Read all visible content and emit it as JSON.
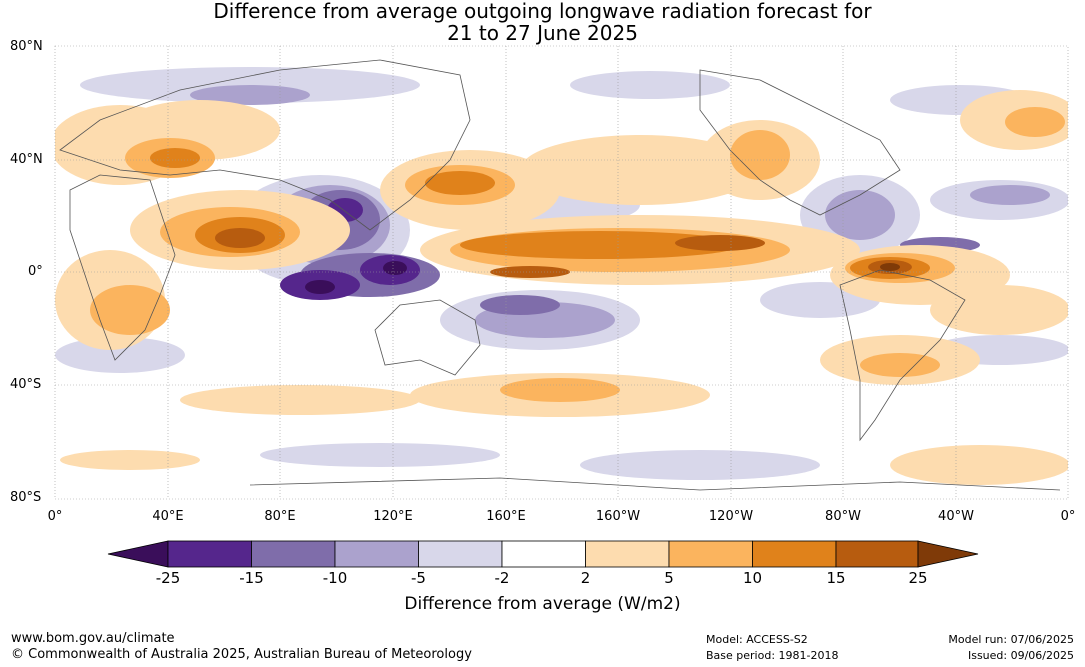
{
  "title_line1": "Difference from average outgoing longwave radiation forecast for",
  "title_line2": "21 to 27 June 2025",
  "lat_labels": [
    "80°N",
    "40°N",
    "0°",
    "40°S",
    "80°S"
  ],
  "lon_labels": [
    "0°",
    "40°E",
    "80°E",
    "120°E",
    "160°E",
    "160°W",
    "120°W",
    "80°W",
    "40°W",
    "0°"
  ],
  "colorbar": {
    "ticks": [
      "-25",
      "-15",
      "-10",
      "-5",
      "-2",
      "2",
      "5",
      "10",
      "15",
      "25"
    ],
    "colors": [
      "#3a0e5a",
      "#55268c",
      "#7f6daa",
      "#aba2cd",
      "#d8d7ea",
      "#ffffff",
      "#fddcaf",
      "#fbb45e",
      "#e0821b",
      "#b75c0f",
      "#7f3a08"
    ],
    "title": "Difference from average (W/m2)"
  },
  "footer": {
    "url": "www.bom.gov.au/climate",
    "copyright": "© Commonwealth of Australia 2025, Australian Bureau of Meteorology",
    "model": "Model: ACCESS-S2",
    "base_period": "Base period: 1981-2018",
    "model_run": "Model run: 07/06/2025",
    "issued": "Issued: 09/06/2025"
  }
}
